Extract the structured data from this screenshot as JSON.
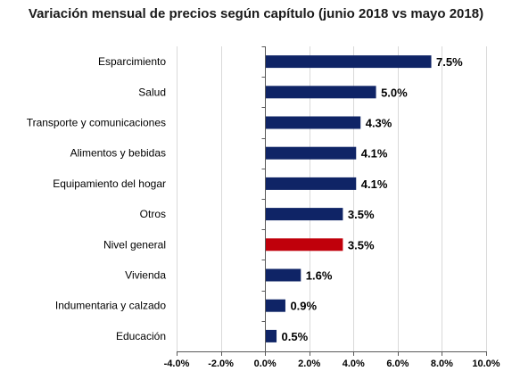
{
  "chart_data": {
    "type": "bar",
    "orientation": "horizontal",
    "title": "Variación mensual de precios según capítulo (junio 2018 vs mayo 2018)",
    "xlabel": "",
    "ylabel": "",
    "categories": [
      "Esparcimiento",
      "Salud",
      "Transporte y comunicaciones",
      "Alimentos y bebidas",
      "Equipamiento del hogar",
      "Otros",
      "Nivel general",
      "Vivienda",
      "Indumentaria y calzado",
      "Educación"
    ],
    "values": [
      7.5,
      5.0,
      4.3,
      4.1,
      4.1,
      3.5,
      3.5,
      1.6,
      0.9,
      0.5
    ],
    "value_labels": [
      "7.5%",
      "5.0%",
      "4.3%",
      "4.1%",
      "4.1%",
      "3.5%",
      "3.5%",
      "1.6%",
      "0.9%",
      "0.5%"
    ],
    "xlim": [
      -4,
      10
    ],
    "xticks": [
      -4,
      -2,
      0,
      2,
      4,
      6,
      8,
      10
    ],
    "xtick_labels": [
      "-4.0%",
      "-2.0%",
      "0.0%",
      "2.0%",
      "4.0%",
      "6.0%",
      "8.0%",
      "10.0%"
    ],
    "grid": true,
    "legend": "none",
    "colors": {
      "bar": "#0f2466",
      "highlight": "#c0000b",
      "grid": "#d9d9d9",
      "axis": "#595959",
      "text": "#000000"
    },
    "highlight_category": "Nivel general"
  }
}
